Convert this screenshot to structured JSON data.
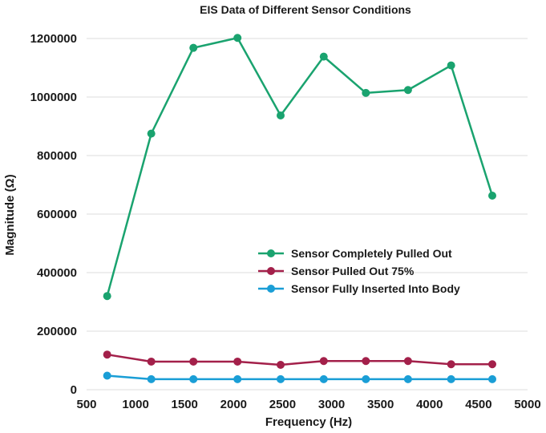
{
  "chart_data": {
    "type": "line",
    "title": "EIS Data of Different Sensor Conditions",
    "xlabel": "Frequency (Hz)",
    "ylabel": "Magnitude (Ω)",
    "xlim": [
      500,
      5000
    ],
    "ylim": [
      0,
      1200000
    ],
    "x_ticks": [
      "500",
      "1000",
      "1500",
      "2000",
      "2500",
      "3000",
      "3500",
      "4000",
      "4500",
      "5000"
    ],
    "y_ticks": [
      "0",
      "200000",
      "400000",
      "600000",
      "800000",
      "1000000",
      "1200000"
    ],
    "grid": "horizontal",
    "legend_position": "center-right",
    "x": [
      710,
      1160,
      1590,
      2040,
      2480,
      2920,
      3350,
      3780,
      4220,
      4640
    ],
    "series": [
      {
        "name": "Sensor Completely Pulled Out",
        "color": "#1aa36f",
        "values": [
          320000,
          875000,
          1168000,
          1202000,
          937000,
          1138000,
          1014000,
          1024000,
          1108000,
          663000
        ]
      },
      {
        "name": "Sensor Pulled Out 75%",
        "color": "#a3204a",
        "values": [
          120000,
          96000,
          96000,
          96000,
          85000,
          98000,
          98000,
          98000,
          87000,
          87000
        ]
      },
      {
        "name": "Sensor Fully Inserted Into Body",
        "color": "#1a9ed6",
        "values": [
          48000,
          36000,
          36000,
          36000,
          36000,
          36000,
          36000,
          36000,
          36000,
          36000
        ]
      }
    ]
  }
}
